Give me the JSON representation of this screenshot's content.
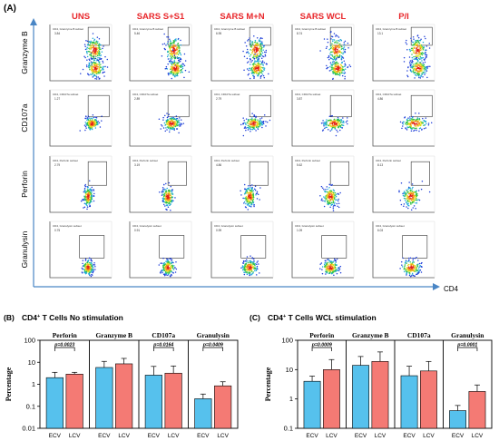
{
  "panel_a": {
    "label": "(A)",
    "conditions": [
      "UNS",
      "SARS S+S1",
      "SARS M+N",
      "SARS WCL",
      "P/I"
    ],
    "markers": [
      "Granzyme B",
      "CD107a",
      "Perforin",
      "Granulysin"
    ],
    "x_axis_label": "CD4",
    "condition_color": "#e8262a",
    "gate_labels": [
      "CD4, Granzyme B subset",
      "CD4, CD107a subset",
      "CD4, Perforin subset",
      "CD4, Granulysin subset"
    ],
    "gate_values": [
      [
        "3.84",
        "5.46",
        "6.95",
        "8.74",
        "13.1"
      ],
      [
        "1.27",
        "2.89",
        "2.79",
        "3.87",
        "4.86"
      ],
      [
        "2.79",
        "3.19",
        "4.86",
        "5.62",
        "8.13"
      ],
      [
        "0.75",
        "0.91",
        "0.99",
        "1.09",
        "6.03"
      ]
    ]
  },
  "chart_data": [
    {
      "type": "bar",
      "label": "(B)",
      "title": "CD4⁺ T Cells No stimulation",
      "title_main": "CD4",
      "title_sup": "+",
      "title_rest": " T Cells No stimulation",
      "ylabel": "Percentage",
      "yscale": "log",
      "ylim": [
        0.01,
        100
      ],
      "yticks": [
        "0.01",
        "0.1",
        "1",
        "10",
        "100"
      ],
      "groups": [
        {
          "name": "Perforin",
          "categories": [
            "ECV",
            "LCV"
          ],
          "values": [
            2.0,
            2.9
          ],
          "errors": [
            3.5,
            3.5
          ],
          "pvalue": "p=0.0023"
        },
        {
          "name": "Granzyme B",
          "categories": [
            "ECV",
            "LCV"
          ],
          "values": [
            5.8,
            8.5
          ],
          "errors": [
            11,
            15
          ],
          "pvalue": ""
        },
        {
          "name": "CD107a",
          "categories": [
            "ECV",
            "LCV"
          ],
          "values": [
            2.6,
            3.2
          ],
          "errors": [
            6.5,
            6.8
          ],
          "pvalue": "p=0.0164"
        },
        {
          "name": "Granulysin",
          "categories": [
            "ECV",
            "LCV"
          ],
          "values": [
            0.22,
            0.85
          ],
          "errors": [
            0.36,
            1.3
          ],
          "pvalue": "p=0.0409"
        }
      ],
      "series_colors": {
        "ECV": "#56c1ed",
        "LCV": "#f47a74"
      }
    },
    {
      "type": "bar",
      "label": "(C)",
      "title": "CD4⁺ T Cells WCL stimulation",
      "title_main": "CD4",
      "title_sup": "+",
      "title_rest": " T Cells WCL stimulation",
      "ylabel": "Percentage",
      "yscale": "log",
      "ylim": [
        0.1,
        100
      ],
      "yticks": [
        "0.1",
        "1",
        "10",
        "100"
      ],
      "groups": [
        {
          "name": "Perforin",
          "categories": [
            "ECV",
            "LCV"
          ],
          "values": [
            4.0,
            10.0
          ],
          "errors": [
            6.0,
            22
          ],
          "pvalue": "p=0.0009"
        },
        {
          "name": "Granzyme B",
          "categories": [
            "ECV",
            "LCV"
          ],
          "values": [
            14,
            19
          ],
          "errors": [
            28,
            40
          ],
          "pvalue": ""
        },
        {
          "name": "CD107a",
          "categories": [
            "ECV",
            "LCV"
          ],
          "values": [
            6.2,
            9.0
          ],
          "errors": [
            13,
            19
          ],
          "pvalue": ""
        },
        {
          "name": "Granulysin",
          "categories": [
            "ECV",
            "LCV"
          ],
          "values": [
            0.4,
            1.8
          ],
          "errors": [
            0.6,
            3.0
          ],
          "pvalue": "p=0.0001"
        }
      ],
      "series_colors": {
        "ECV": "#56c1ed",
        "LCV": "#f47a74"
      }
    }
  ]
}
